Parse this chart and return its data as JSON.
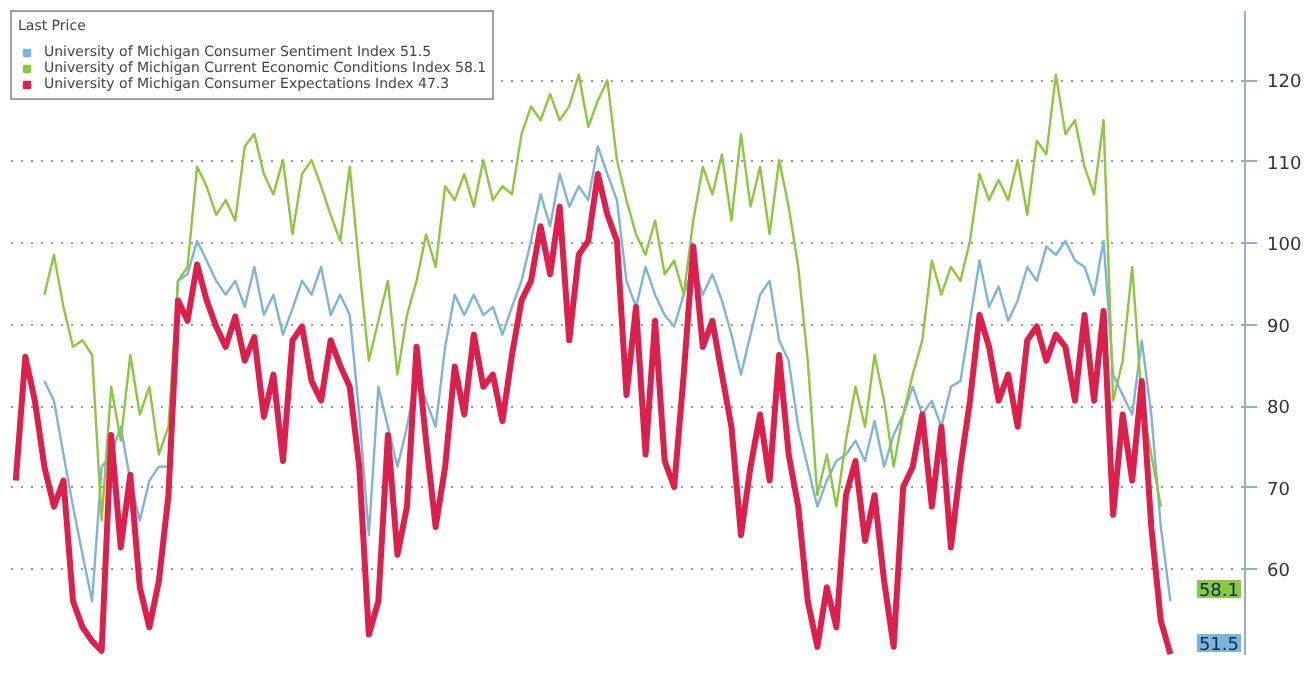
{
  "chart_data": {
    "type": "line",
    "legend_title": "Last Price",
    "legend": "top left",
    "grid": "y",
    "categories": [
      null,
      null,
      null,
      null,
      null,
      null,
      null,
      null,
      null,
      null,
      null,
      null,
      null,
      null,
      null,
      null,
      null,
      null,
      null,
      null,
      null,
      null,
      null,
      null,
      null,
      null,
      null,
      null,
      null,
      null,
      null,
      null,
      null,
      null,
      null,
      null,
      null,
      null,
      null,
      null,
      null,
      null,
      null,
      null,
      null,
      null,
      null,
      null,
      null,
      null,
      null,
      null,
      null,
      null,
      null,
      null,
      null,
      null,
      null,
      null,
      null,
      null,
      null,
      null,
      null,
      null,
      null,
      null,
      null,
      null,
      null,
      null,
      null,
      null,
      null,
      null,
      null,
      null,
      null,
      null,
      null,
      null,
      null,
      null,
      null,
      null,
      null,
      null,
      null,
      null,
      null,
      null,
      null,
      null,
      null,
      null,
      null,
      null,
      null,
      null,
      null,
      null,
      null,
      null,
      null,
      null,
      null,
      null,
      null,
      null,
      null,
      null,
      null,
      null,
      null,
      null,
      null,
      null,
      null,
      null,
      null,
      null
    ],
    "ylim": [
      49.5,
      128.5
    ],
    "yticks": [
      60,
      70,
      80,
      90,
      100,
      110,
      120
    ],
    "annotations": [
      "51.5",
      "58.1"
    ],
    "series": [
      {
        "name": "University of Michigan Consumer Sentiment Index 51.5",
        "color": "#7fb3d8",
        "values": [
          null,
          null,
          null,
          83.1,
          80.7,
          74.1,
          67.7,
          61.8,
          56.1,
          72.6,
          74.1,
          77.5,
          70.9,
          66.0,
          70.9,
          72.6,
          72.6,
          95.4,
          96.2,
          100.3,
          97.9,
          95.4,
          93.7,
          95.4,
          92.2,
          97.1,
          91.2,
          93.7,
          88.8,
          92.0,
          95.4,
          93.7,
          97.1,
          91.2,
          93.7,
          91.2,
          79.0,
          64.2,
          82.4,
          77.5,
          72.6,
          77.5,
          83.9,
          80.7,
          77.5,
          87.3,
          93.7,
          91.2,
          93.7,
          91.2,
          92.2,
          88.8,
          92.2,
          95.4,
          100.3,
          106.0,
          102.1,
          108.5,
          104.5,
          107.0,
          105.3,
          111.9,
          108.5,
          105.3,
          95.4,
          92.2,
          97.1,
          93.7,
          91.2,
          89.8,
          93.7,
          97.1,
          93.7,
          96.2,
          93.0,
          88.8,
          83.9,
          88.8,
          93.7,
          95.4,
          88.1,
          85.6,
          77.5,
          72.6,
          67.7,
          70.9,
          73.3,
          74.1,
          75.8,
          73.3,
          78.2,
          72.6,
          76.5,
          79.0,
          82.4,
          79.0,
          80.7,
          77.5,
          82.4,
          83.1,
          90.5,
          97.9,
          92.2,
          94.7,
          90.5,
          93.0,
          97.1,
          95.4,
          99.6,
          98.6,
          100.3,
          97.9,
          97.1,
          93.7,
          100.3,
          83.9,
          81.4,
          79.0,
          88.1,
          79.0,
          65.2,
          56.1
        ]
      },
      {
        "name": "University of Michigan Current Economic Conditions Index 58.1",
        "color": "#8dc63f",
        "values": [
          null,
          null,
          null,
          93.7,
          98.6,
          92.2,
          87.3,
          88.1,
          86.3,
          66.0,
          82.4,
          75.8,
          86.3,
          79.0,
          82.4,
          74.1,
          77.5,
          95.4,
          97.1,
          109.4,
          107.0,
          103.5,
          105.3,
          102.8,
          111.9,
          113.4,
          108.5,
          106.0,
          110.2,
          101.1,
          108.5,
          110.2,
          107.0,
          103.5,
          100.3,
          109.4,
          97.1,
          85.6,
          90.5,
          95.4,
          83.9,
          91.2,
          95.4,
          101.1,
          97.1,
          107.0,
          105.3,
          108.5,
          104.5,
          110.2,
          105.3,
          107.0,
          106.0,
          113.4,
          116.8,
          115.1,
          118.3,
          115.1,
          116.8,
          120.7,
          114.3,
          117.5,
          120.0,
          110.2,
          105.3,
          101.1,
          98.6,
          102.8,
          96.2,
          97.9,
          93.7,
          102.8,
          109.4,
          106.0,
          110.9,
          102.8,
          113.4,
          104.5,
          109.4,
          101.1,
          110.2,
          104.5,
          97.1,
          85.6,
          69.1,
          74.1,
          67.7,
          75.8,
          82.4,
          77.5,
          86.3,
          80.7,
          72.6,
          79.0,
          83.9,
          88.1,
          97.9,
          93.7,
          97.1,
          95.4,
          100.3,
          108.5,
          105.3,
          107.8,
          105.3,
          110.2,
          103.5,
          112.6,
          110.9,
          120.7,
          113.4,
          115.1,
          109.4,
          106.0,
          115.1,
          80.7,
          85.6,
          97.1,
          80.7,
          74.1,
          67.7,
          null
        ]
      },
      {
        "name": "University of Michigan Consumer Expectations Index 47.3",
        "color": "#dc1f4c",
        "values": [
          70.9,
          86.1,
          80.7,
          72.6,
          67.7,
          70.9,
          56.1,
          52.9,
          51.2,
          50.0,
          76.5,
          62.7,
          71.6,
          57.8,
          52.9,
          58.6,
          69.1,
          93.0,
          90.5,
          97.4,
          93.0,
          89.8,
          87.3,
          91.0,
          85.6,
          88.5,
          78.7,
          83.9,
          73.3,
          88.1,
          89.8,
          83.1,
          80.7,
          88.1,
          85.0,
          82.4,
          72.6,
          52.0,
          56.1,
          76.5,
          61.8,
          67.7,
          87.3,
          75.8,
          65.2,
          72.6,
          84.9,
          79.0,
          88.8,
          82.4,
          83.9,
          78.2,
          86.3,
          93.0,
          95.4,
          102.1,
          96.2,
          104.5,
          88.1,
          98.6,
          100.3,
          108.5,
          103.5,
          100.3,
          81.4,
          92.2,
          74.1,
          90.5,
          73.3,
          70.1,
          83.9,
          99.6,
          87.3,
          90.5,
          83.9,
          77.5,
          64.2,
          72.6,
          79.0,
          70.9,
          86.3,
          74.1,
          67.7,
          56.1,
          50.5,
          57.8,
          52.9,
          69.1,
          73.3,
          63.5,
          69.1,
          58.6,
          50.5,
          70.1,
          72.6,
          79.0,
          67.7,
          77.5,
          62.7,
          72.6,
          80.7,
          91.2,
          87.3,
          80.7,
          83.9,
          77.5,
          88.1,
          89.8,
          85.6,
          88.8,
          87.3,
          80.7,
          91.2,
          80.7,
          91.7,
          66.7,
          79.0,
          70.9,
          83.1,
          65.2,
          53.7,
          49.6
        ]
      }
    ]
  }
}
